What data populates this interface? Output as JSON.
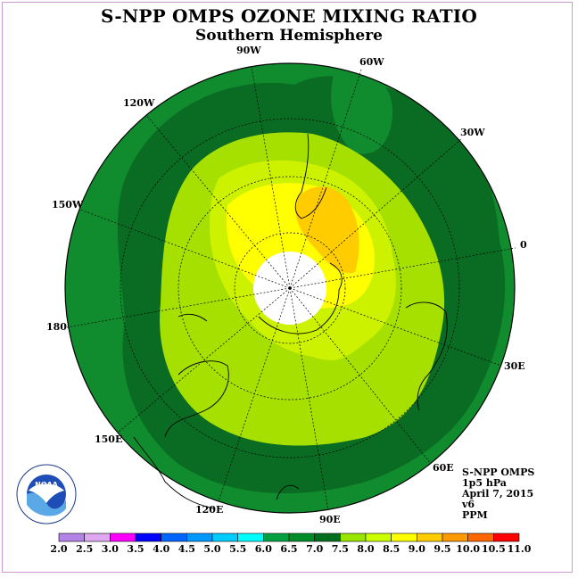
{
  "title": "S-NPP OMPS OZONE MIXING RATIO",
  "subtitle": "Southern Hemisphere",
  "longitude_labels": [
    "90W",
    "60W",
    "30W",
    "0",
    "30E",
    "60E",
    "90E",
    "120E",
    "150E",
    "180",
    "150W",
    "120W"
  ],
  "info": {
    "instrument": "S-NPP OMPS",
    "level": "1p5 hPa",
    "date": "April 7, 2015",
    "version": "v6",
    "units": "PPM"
  },
  "logo": {
    "text": "NOAA",
    "ring_text": "NATIONAL OCEANIC AND ATMOSPHERIC ADMINISTRATION · U.S. DEPARTMENT OF COMMERCE"
  },
  "color_scale": {
    "ticks": [
      "2.0",
      "2.5",
      "3.0",
      "3.5",
      "4.0",
      "4.5",
      "5.0",
      "5.5",
      "6.0",
      "6.5",
      "7.0",
      "7.5",
      "8.0",
      "8.5",
      "9.0",
      "9.5",
      "10.0",
      "10.5",
      "11.0"
    ],
    "colors": [
      "#b383e6",
      "#e0a8f0",
      "#ff00ff",
      "#0000ff",
      "#0066ff",
      "#0099ff",
      "#00ccff",
      "#00ffff",
      "#00a040",
      "#008c28",
      "#006e1e",
      "#99e600",
      "#ccff00",
      "#ffff00",
      "#ffcc00",
      "#ff9900",
      "#ff6600",
      "#ff0000",
      "#996633"
    ]
  },
  "map_colors": {
    "level_6_5": "#108c2e",
    "level_7_0": "#0a6b22",
    "level_7_5": "#a5e000",
    "level_8_0": "#ccf200",
    "level_8_5": "#ffff00",
    "level_9_0": "#ffcc00",
    "level_9_5": "#ffa500",
    "no_data": "#ffffff"
  }
}
